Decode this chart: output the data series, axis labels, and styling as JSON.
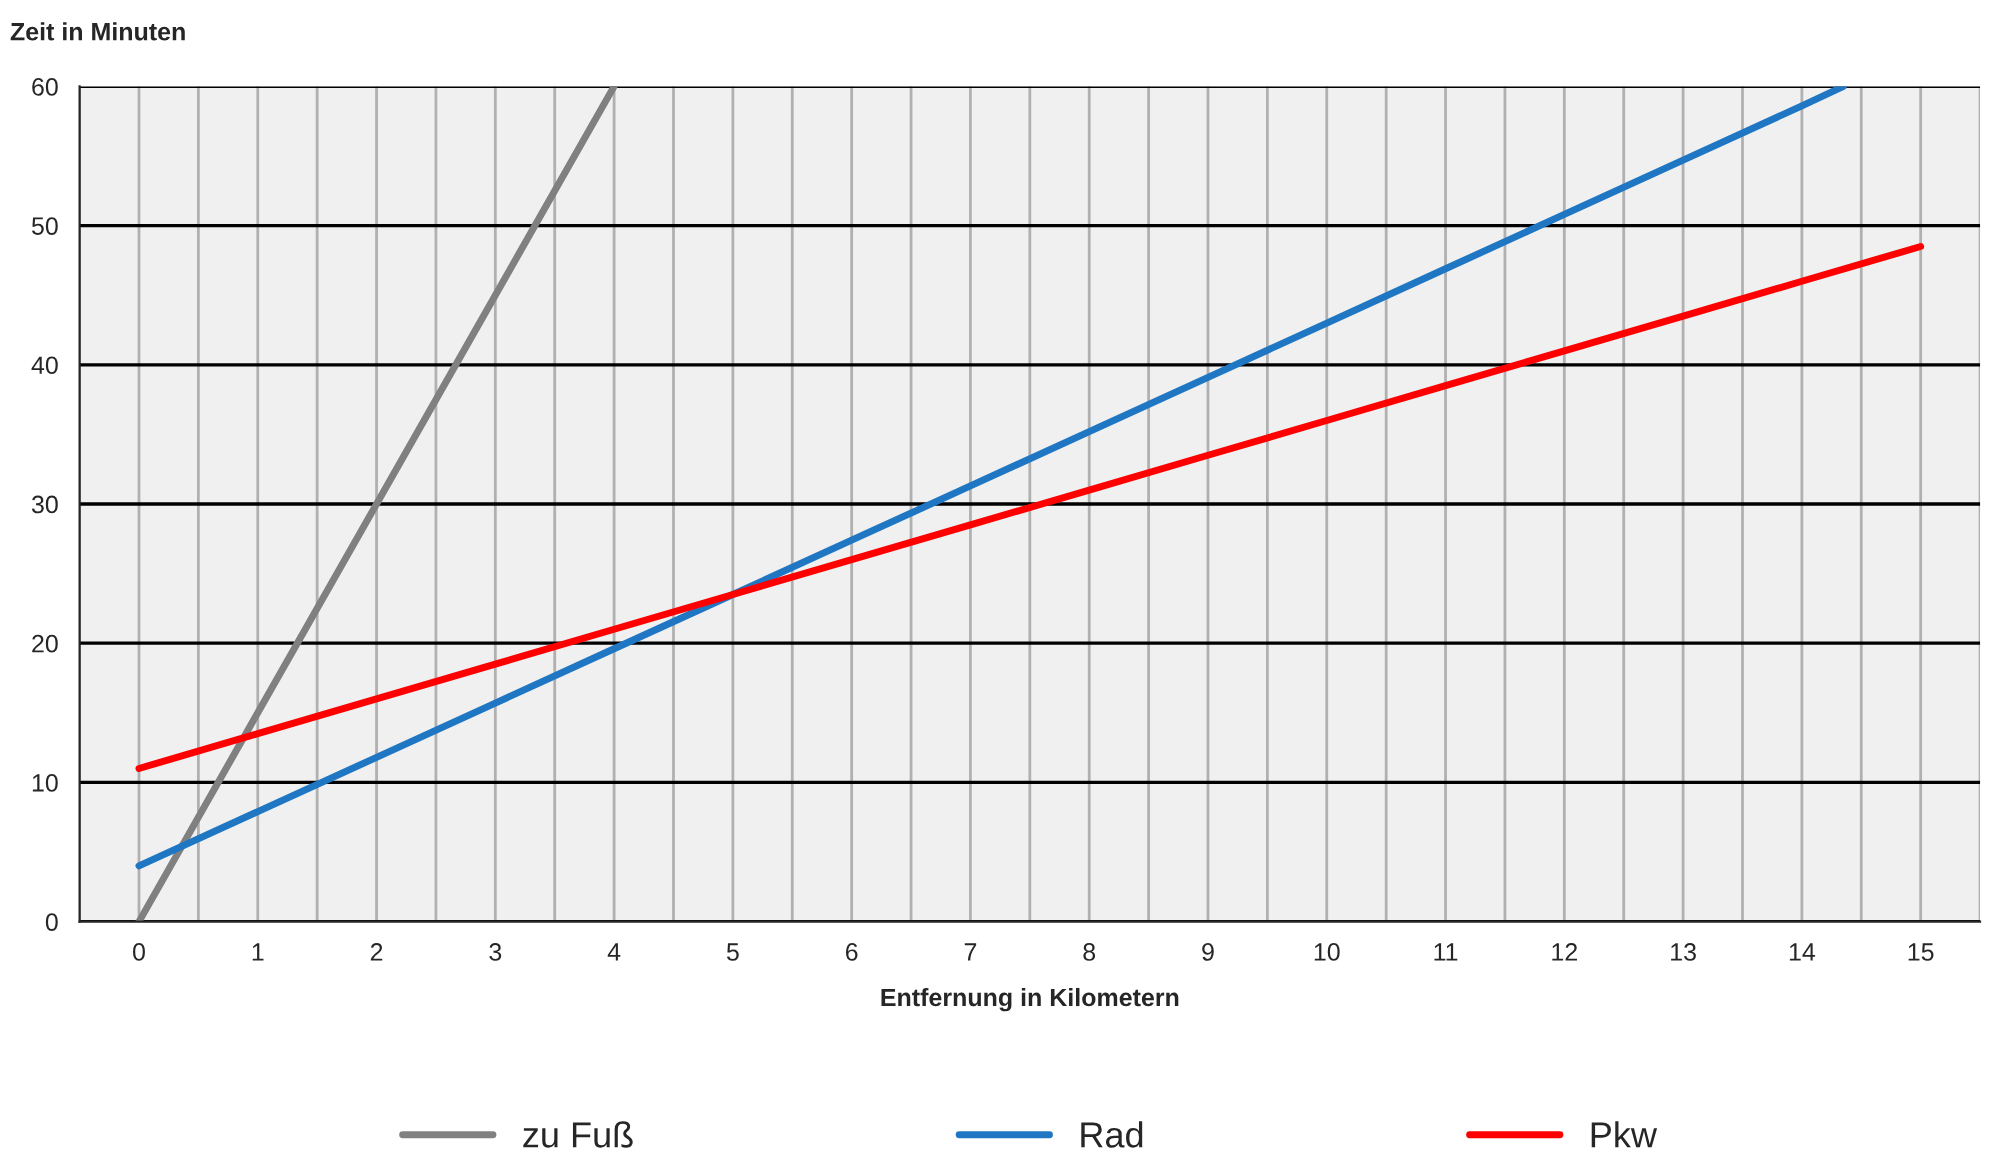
{
  "chart_data": {
    "type": "line",
    "xlabel": "Entfernung in Kilometern",
    "ylabel": "Zeit in Minuten",
    "xlim": [
      -0.5,
      15.5
    ],
    "xticks": [
      {
        "value": -0.5,
        "label": null
      },
      0,
      {
        "value": 0.5,
        "label": null
      },
      1,
      {
        "value": 1.5,
        "label": null
      },
      2,
      {
        "value": 2.5,
        "label": null
      },
      3,
      {
        "value": 3.5,
        "label": null
      },
      4,
      {
        "value": 4.5,
        "label": null
      },
      5,
      {
        "value": 5.5,
        "label": null
      },
      6,
      {
        "value": 6.5,
        "label": null
      },
      7,
      {
        "value": 7.5,
        "label": null
      },
      8,
      {
        "value": 8.5,
        "label": null
      },
      9,
      {
        "value": 9.5,
        "label": null
      },
      10,
      {
        "value": 10.5,
        "label": null
      },
      11,
      {
        "value": 11.5,
        "label": null
      },
      12,
      {
        "value": 12.5,
        "label": null
      },
      13,
      {
        "value": 13.5,
        "label": null
      },
      14,
      {
        "value": 14.5,
        "label": null
      },
      15,
      {
        "value": 15.5,
        "label": null
      }
    ],
    "ylim": [
      0,
      60
    ],
    "yticks": [
      0,
      10,
      20,
      30,
      40,
      50,
      60
    ],
    "grid": true,
    "legend": "bottom",
    "marker": "none",
    "line_style": "solid",
    "series": [
      {
        "name": "zu Fuß",
        "color": "#808080",
        "x": [
          0,
          1,
          2,
          3,
          4
        ],
        "values": [
          0,
          15,
          30,
          45,
          60
        ]
      },
      {
        "name": "Rad",
        "color": "#1f77c4",
        "x": [
          0,
          1,
          2,
          3,
          4,
          5,
          6,
          7,
          8,
          9,
          10,
          11,
          12,
          13,
          14,
          14.35
        ],
        "values": [
          4,
          7.9,
          11.8,
          15.7,
          19.6,
          23.5,
          27.4,
          31.3,
          35.2,
          39.1,
          43,
          46.9,
          50.8,
          54.7,
          58.6,
          60
        ]
      },
      {
        "name": "Pkw",
        "color": "#ff0000",
        "x": [
          0,
          1,
          2,
          3,
          4,
          5,
          6,
          7,
          8,
          9,
          10,
          11,
          12,
          13,
          14,
          15
        ],
        "values": [
          11,
          13.5,
          16,
          18.5,
          21,
          23.5,
          26,
          28.5,
          31,
          33.5,
          36,
          38.5,
          41,
          43.5,
          46,
          48.5
        ]
      }
    ]
  }
}
